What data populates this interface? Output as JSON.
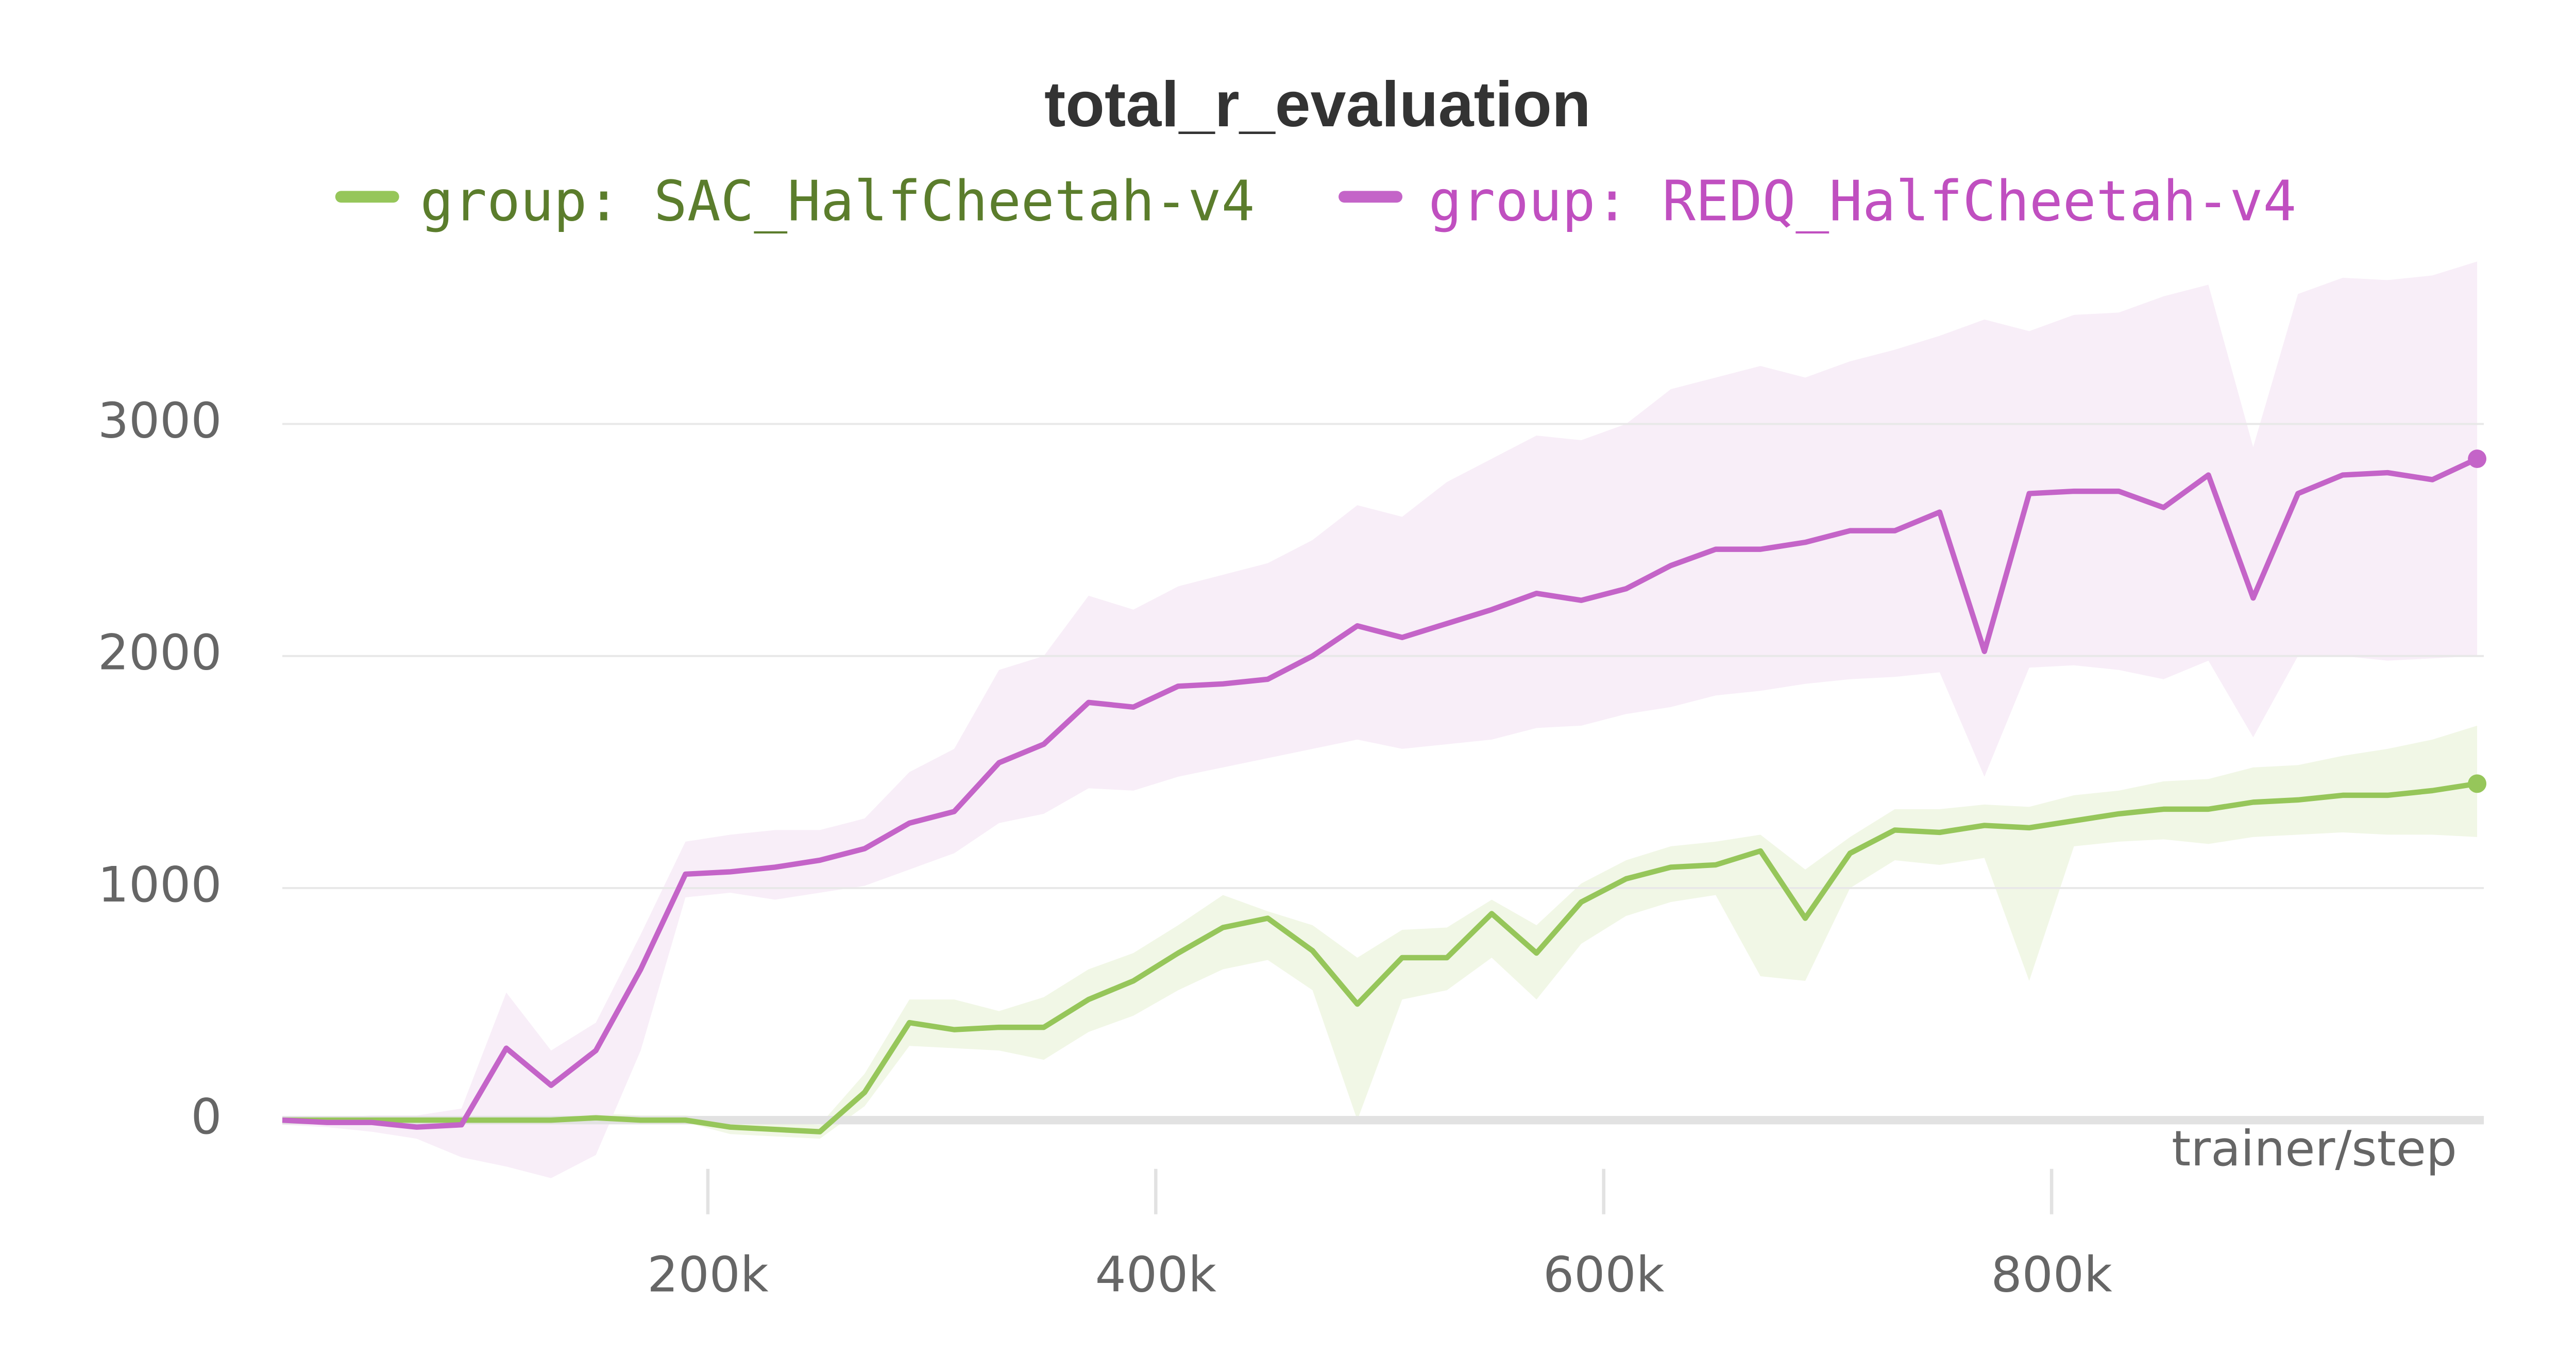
{
  "chart_data": {
    "type": "line",
    "title": "total_r_evaluation",
    "xlabel": "trainer/step",
    "x": [
      10000,
      30000,
      50000,
      70000,
      90000,
      110000,
      130000,
      150000,
      170000,
      190000,
      210000,
      230000,
      250000,
      270000,
      290000,
      310000,
      330000,
      350000,
      370000,
      390000,
      410000,
      430000,
      450000,
      470000,
      490000,
      510000,
      530000,
      550000,
      570000,
      590000,
      610000,
      630000,
      650000,
      670000,
      690000,
      710000,
      730000,
      750000,
      770000,
      790000,
      810000,
      830000,
      850000,
      870000,
      890000,
      910000,
      930000,
      950000,
      970000,
      990000
    ],
    "xlim": [
      10000,
      993000
    ],
    "xticks": [
      {
        "value": 200000,
        "label": "200k"
      },
      {
        "value": 400000,
        "label": "400k"
      },
      {
        "value": 600000,
        "label": "600k"
      },
      {
        "value": 800000,
        "label": "800k"
      }
    ],
    "ylim": [
      -460,
      3700
    ],
    "yticks": [
      0,
      1000,
      2000,
      3000
    ],
    "grid": true,
    "series": [
      {
        "name": "group: SAC_HalfCheetah-v4",
        "color": "#96c65a",
        "text_color": "#5b7d2c",
        "band_color": "#eef6e2",
        "values": [
          0,
          0,
          0,
          0,
          0,
          0,
          0,
          10,
          0,
          0,
          -30,
          -40,
          -50,
          120,
          420,
          390,
          400,
          400,
          520,
          600,
          720,
          830,
          870,
          730,
          500,
          700,
          700,
          890,
          720,
          940,
          1040,
          1090,
          1100,
          1160,
          870,
          1150,
          1250,
          1240,
          1270,
          1260,
          1290,
          1320,
          1340,
          1340,
          1370,
          1380,
          1400,
          1400,
          1420,
          1450
        ],
        "lower": [
          0,
          0,
          0,
          0,
          -10,
          -10,
          -10,
          -10,
          -10,
          -10,
          -60,
          -70,
          -80,
          60,
          320,
          310,
          300,
          260,
          380,
          450,
          560,
          650,
          690,
          560,
          0,
          520,
          560,
          700,
          520,
          760,
          880,
          940,
          970,
          620,
          600,
          1000,
          1120,
          1100,
          1130,
          600,
          1180,
          1200,
          1210,
          1190,
          1220,
          1230,
          1240,
          1230,
          1230,
          1220
        ],
        "upper": [
          10,
          10,
          10,
          10,
          20,
          20,
          20,
          30,
          20,
          20,
          0,
          -10,
          -20,
          200,
          520,
          520,
          470,
          530,
          650,
          720,
          840,
          970,
          900,
          840,
          700,
          820,
          830,
          950,
          840,
          1020,
          1120,
          1180,
          1200,
          1230,
          1080,
          1220,
          1340,
          1340,
          1360,
          1350,
          1400,
          1420,
          1460,
          1470,
          1520,
          1530,
          1570,
          1600,
          1640,
          1700
        ]
      },
      {
        "name": "group: REDQ_HalfCheetah-v4",
        "color": "#c464c8",
        "text_color": "#c04fc0",
        "band_color": "#f7ebf7",
        "values": [
          0,
          -10,
          -10,
          -30,
          -20,
          310,
          150,
          300,
          650,
          1060,
          1070,
          1090,
          1120,
          1170,
          1280,
          1330,
          1540,
          1620,
          1800,
          1780,
          1870,
          1880,
          1900,
          2000,
          2130,
          2080,
          2140,
          2200,
          2270,
          2240,
          2290,
          2390,
          2460,
          2460,
          2490,
          2540,
          2540,
          2620,
          2020,
          2700,
          2710,
          2710,
          2640,
          2780,
          2250,
          2700,
          2780,
          2790,
          2760,
          2850
        ],
        "lower": [
          -20,
          -30,
          -50,
          -80,
          -160,
          -200,
          -250,
          -150,
          300,
          960,
          980,
          950,
          980,
          1010,
          1080,
          1150,
          1280,
          1320,
          1430,
          1420,
          1480,
          1520,
          1560,
          1600,
          1640,
          1600,
          1620,
          1640,
          1690,
          1700,
          1750,
          1780,
          1830,
          1850,
          1880,
          1900,
          1910,
          1930,
          1480,
          1950,
          1960,
          1940,
          1900,
          1980,
          1650,
          2000,
          2000,
          1980,
          1990,
          2000
        ],
        "upper": [
          10,
          10,
          20,
          20,
          50,
          550,
          300,
          420,
          800,
          1200,
          1230,
          1250,
          1250,
          1300,
          1500,
          1600,
          1940,
          2000,
          2260,
          2200,
          2300,
          2350,
          2400,
          2500,
          2650,
          2600,
          2750,
          2850,
          2950,
          2930,
          3000,
          3150,
          3200,
          3250,
          3200,
          3270,
          3320,
          3380,
          3450,
          3400,
          3470,
          3480,
          3550,
          3600,
          2900,
          3560,
          3630,
          3620,
          3640,
          3700
        ]
      }
    ]
  }
}
